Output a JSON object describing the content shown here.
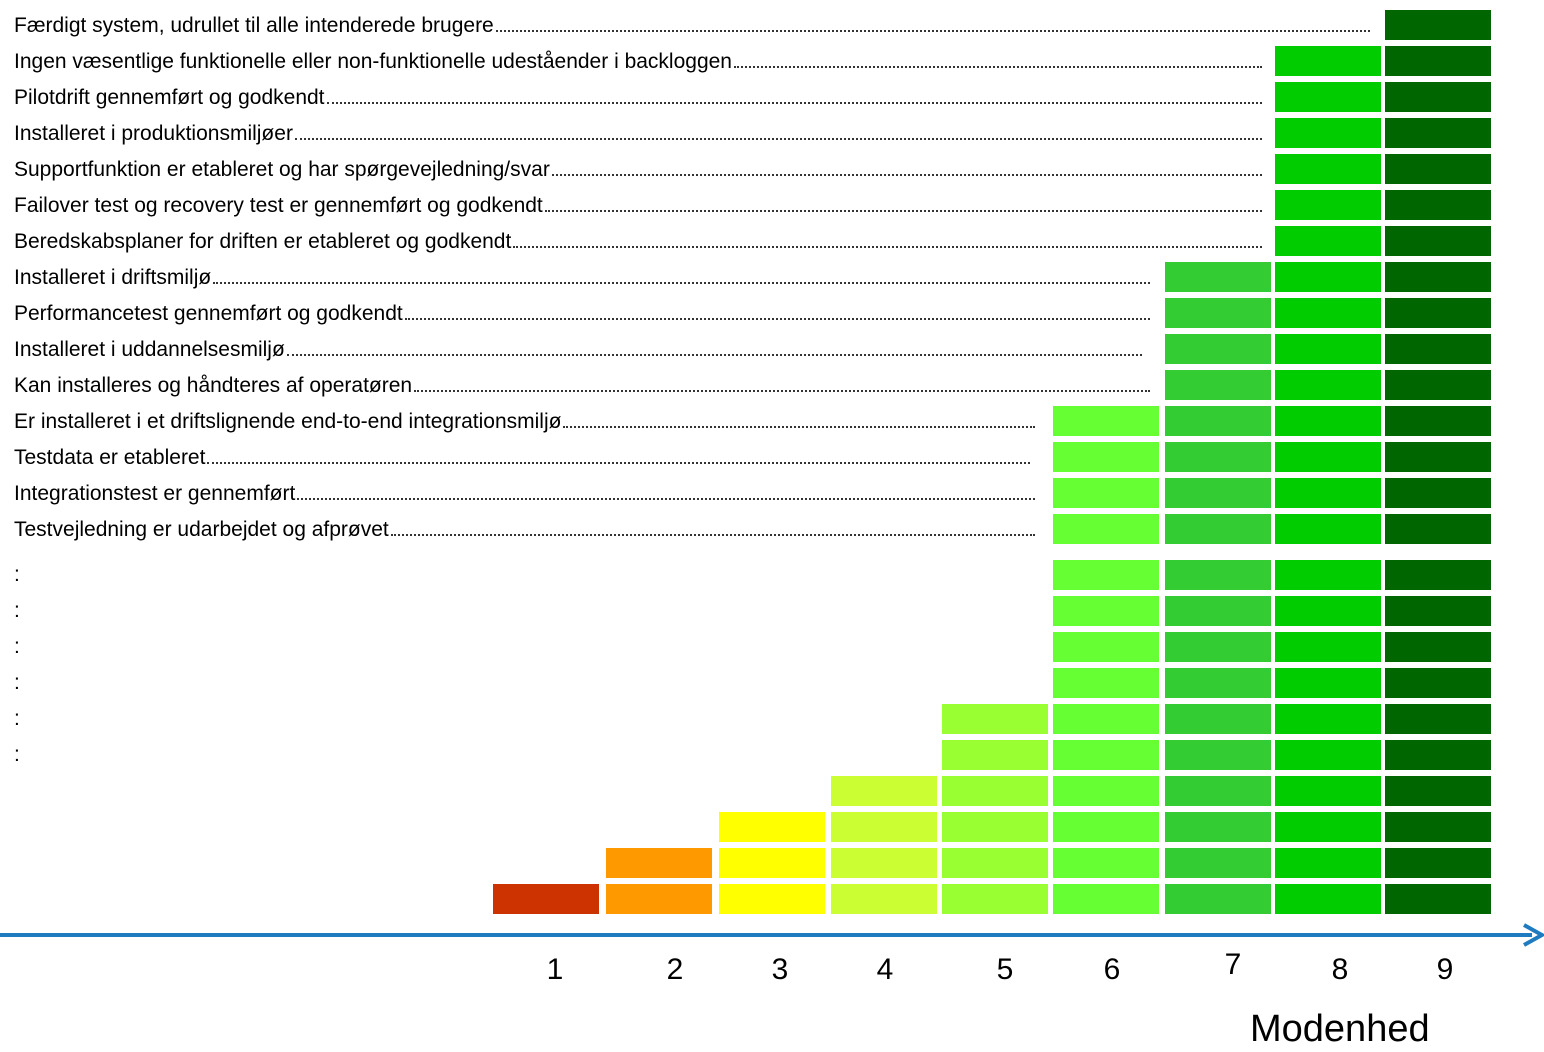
{
  "items": [
    "Færdigt system, udrullet til alle intenderede brugere",
    "Ingen væsentlige funktionelle eller non-funktionelle udeståender i backloggen",
    "Pilotdrift gennemført og godkendt",
    "Installeret i produktionsmiljøer",
    "Supportfunktion er etableret og har spørgevejledning/svar",
    "Failover test og recovery test er gennemført og godkendt",
    "Beredskabsplaner for driften er etableret og godkendt",
    "Installeret i driftsmiljø",
    "Performancetest gennemført og godkendt",
    "Installeret i uddannelsesmiljø",
    "Kan installeres og håndteres af operatøren",
    "Er installeret i et driftslignende end-to-end integrationsmiljø",
    "Testdata er etableret",
    "Integrationstest er gennemført",
    "Testvejledning er udarbejdet og afprøvet",
    ":",
    ":",
    ":",
    ":",
    ":",
    ":"
  ],
  "levels": [
    "1",
    "2",
    "3",
    "4",
    "5",
    "6",
    "7",
    "8",
    "9"
  ],
  "axis_label": "Modenhed"
}
